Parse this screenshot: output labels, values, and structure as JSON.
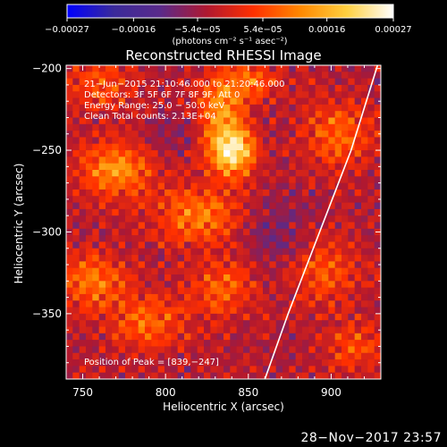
{
  "chart_data": {
    "type": "heatmap",
    "title": "Reconstructed RHESSI Image",
    "xlabel": "Heliocentric X (arcsec)",
    "ylabel": "Heliocentric Y (arcsec)",
    "xlim": [
      740,
      930
    ],
    "ylim": [
      -390,
      -198
    ],
    "x_ticks": [
      750,
      800,
      850,
      900
    ],
    "y_ticks": [
      -200,
      -250,
      -300,
      -350
    ],
    "x_tick_labels": [
      "750",
      "800",
      "850",
      "900"
    ],
    "y_tick_labels": [
      "−200",
      "−250",
      "−300",
      "−350"
    ],
    "colorbar": {
      "range": [
        -0.00027,
        0.00027
      ],
      "ticks": [
        -0.00027,
        -0.00016,
        -5.4e-05,
        5.4e-05,
        0.00016,
        0.00027
      ],
      "tick_labels": [
        "−0.00027",
        "−0.00016",
        "−5.4e−05",
        "5.4e−05",
        "0.00016",
        "0.00027"
      ],
      "unit": "(photons cm⁻² s⁻¹ asec⁻²)"
    },
    "annotations": [
      "21−Jun−2015 21:10:46.000 to 21:20:46.000",
      "Detectors: 3F 5F 6F 7F 8F 9F, Att 0",
      "Energy Range: 25.0 − 50.0 keV",
      "Clean     Total counts: 2.13E+04"
    ],
    "peak_label": "Position of Peak = [839,−247]",
    "peak": {
      "x": 839,
      "y": -247
    },
    "limb_points": [
      [
        928,
        -198
      ],
      [
        912,
        -250
      ],
      [
        893,
        -300
      ],
      [
        874,
        -350
      ],
      [
        860,
        -390
      ]
    ],
    "sources": [
      {
        "x": 840,
        "y": -250,
        "amp": 0.00027,
        "sx": 10,
        "sy": 11
      },
      {
        "x": 833,
        "y": -222,
        "amp": 0.00015,
        "sx": 9,
        "sy": 14
      },
      {
        "x": 852,
        "y": -208,
        "amp": 0.00012,
        "sx": 10,
        "sy": 8
      },
      {
        "x": 770,
        "y": -262,
        "amp": 0.00016,
        "sx": 16,
        "sy": 12
      },
      {
        "x": 755,
        "y": -330,
        "amp": 0.00013,
        "sx": 14,
        "sy": 12
      },
      {
        "x": 820,
        "y": -290,
        "amp": 0.00014,
        "sx": 18,
        "sy": 12
      },
      {
        "x": 790,
        "y": -355,
        "amp": 0.00012,
        "sx": 16,
        "sy": 11
      },
      {
        "x": 835,
        "y": -335,
        "amp": 0.00011,
        "sx": 14,
        "sy": 12
      },
      {
        "x": 905,
        "y": -240,
        "amp": 0.00012,
        "sx": 14,
        "sy": 14
      },
      {
        "x": 895,
        "y": -325,
        "amp": 0.0001,
        "sx": 14,
        "sy": 14
      },
      {
        "x": 915,
        "y": -370,
        "amp": 9e-05,
        "sx": 12,
        "sy": 10
      },
      {
        "x": 760,
        "y": -210,
        "amp": 0.0001,
        "sx": 14,
        "sy": 10
      },
      {
        "x": 865,
        "y": -300,
        "amp": -5e-05,
        "sx": 14,
        "sy": 18
      },
      {
        "x": 800,
        "y": -240,
        "amp": -4e-05,
        "sx": 10,
        "sy": 10
      }
    ]
  },
  "footer": {
    "timestamp": "28−Nov−2017 23:57"
  },
  "colors": {
    "colorbar_stops": [
      "#0000ff",
      "#3a2a9a",
      "#5a2a8a",
      "#b01830",
      "#ff3000",
      "#ff8800",
      "#ffd040",
      "#ffffff"
    ],
    "limb": "#ffffff",
    "background": "#000000"
  }
}
